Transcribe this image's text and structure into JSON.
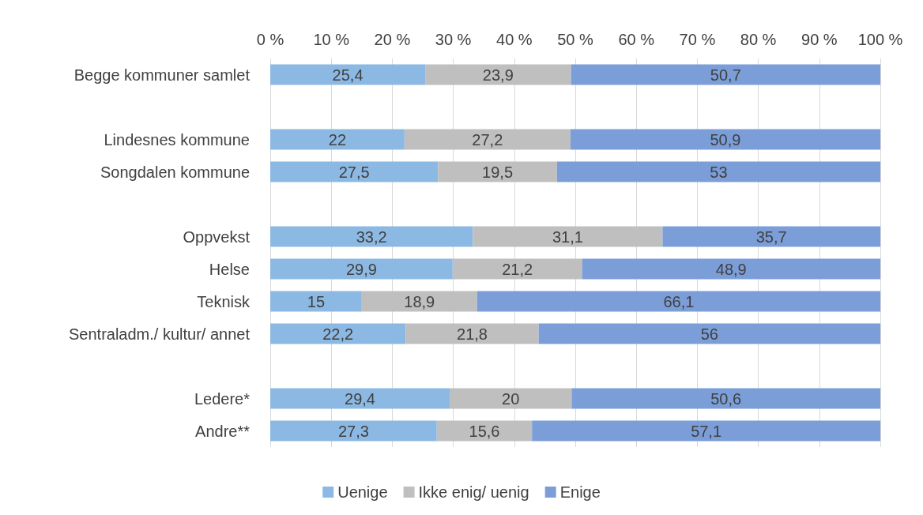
{
  "chart_data": {
    "type": "bar",
    "orientation": "horizontal",
    "stacked": true,
    "categories": [
      "Begge kommuner samlet",
      null,
      "Lindesnes kommune",
      "Songdalen kommune",
      null,
      "Oppvekst",
      "Helse",
      "Teknisk",
      "Sentraladm./ kultur/ annet",
      null,
      "Ledere*",
      "Andre**"
    ],
    "series": [
      {
        "name": "Uenige",
        "color": "#8cb9e3",
        "values": [
          25.4,
          null,
          22,
          27.5,
          null,
          33.2,
          29.9,
          15,
          22.2,
          null,
          29.4,
          27.3
        ],
        "value_labels": [
          "25,4",
          null,
          "22",
          "27,5",
          null,
          "33,2",
          "29,9",
          "15",
          "22,2",
          null,
          "29,4",
          "27,3"
        ]
      },
      {
        "name": "Ikke enig/ uenig",
        "color": "#bfbfbf",
        "values": [
          23.9,
          null,
          27.2,
          19.5,
          null,
          31.1,
          21.2,
          18.9,
          21.8,
          null,
          20,
          15.6
        ],
        "value_labels": [
          "23,9",
          null,
          "27,2",
          "19,5",
          null,
          "31,1",
          "21,2",
          "18,9",
          "21,8",
          null,
          "20",
          "15,6"
        ]
      },
      {
        "name": "Enige",
        "color": "#7b9ed9",
        "values": [
          50.7,
          null,
          50.9,
          53,
          null,
          35.7,
          48.9,
          66.1,
          56,
          null,
          50.6,
          57.1
        ],
        "value_labels": [
          "50,7",
          null,
          "50,9",
          "53",
          null,
          "35,7",
          "48,9",
          "66,1",
          "56",
          null,
          "50,6",
          "57,1"
        ]
      }
    ],
    "xlim": [
      0,
      100
    ],
    "xticks": [
      {
        "value": 0,
        "label": "0 %"
      },
      {
        "value": 10,
        "label": "10 %"
      },
      {
        "value": 20,
        "label": "20 %"
      },
      {
        "value": 30,
        "label": "30 %"
      },
      {
        "value": 40,
        "label": "40 %"
      },
      {
        "value": 50,
        "label": "50 %"
      },
      {
        "value": 60,
        "label": "60 %"
      },
      {
        "value": 70,
        "label": "70 %"
      },
      {
        "value": 80,
        "label": "80 %"
      },
      {
        "value": 90,
        "label": "90 %"
      },
      {
        "value": 100,
        "label": "100 %"
      }
    ],
    "grid": "x",
    "legend": "bottom"
  }
}
